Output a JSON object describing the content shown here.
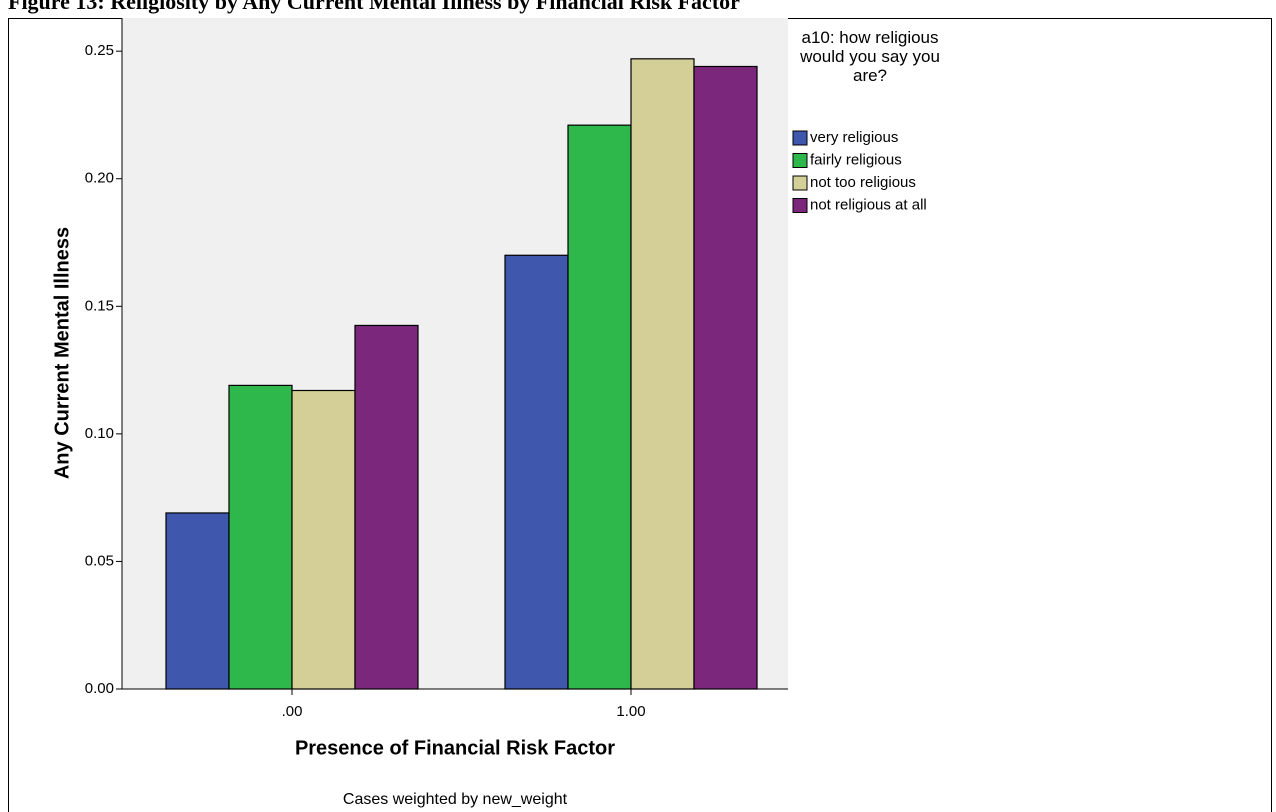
{
  "chart_data": {
    "type": "bar",
    "title": "Figure 13: Religiosity by Any Current Mental Illness by Financial Risk Factor",
    "x_label": "Presence of Financial Risk Factor",
    "y_label": "Any Current Mental Illness",
    "legend_title": "a10: how religious would you say you are?",
    "footnote": "Cases weighted by new_weight",
    "categories": [
      ".00",
      "1.00"
    ],
    "series": [
      {
        "name": "very religious",
        "color": "#3f58ae",
        "values": [
          0.069,
          0.17
        ]
      },
      {
        "name": "fairly religious",
        "color": "#2eb84b",
        "values": [
          0.119,
          0.221
        ]
      },
      {
        "name": "not too religious",
        "color": "#d4cf97",
        "values": [
          0.117,
          0.247
        ]
      },
      {
        "name": "not religious at all",
        "color": "#7b277b",
        "values": [
          0.1425,
          0.244
        ]
      }
    ],
    "ylim": [
      0,
      0.263
    ],
    "yticks": [
      {
        "value": 0,
        "label": "0.00"
      },
      {
        "value": 0.05,
        "label": "0.05"
      },
      {
        "value": 0.1,
        "label": "0.10"
      },
      {
        "value": 0.15,
        "label": "0.15"
      },
      {
        "value": 0.2,
        "label": "0.20"
      },
      {
        "value": 0.25,
        "label": "0.25"
      }
    ],
    "legend": "right"
  }
}
